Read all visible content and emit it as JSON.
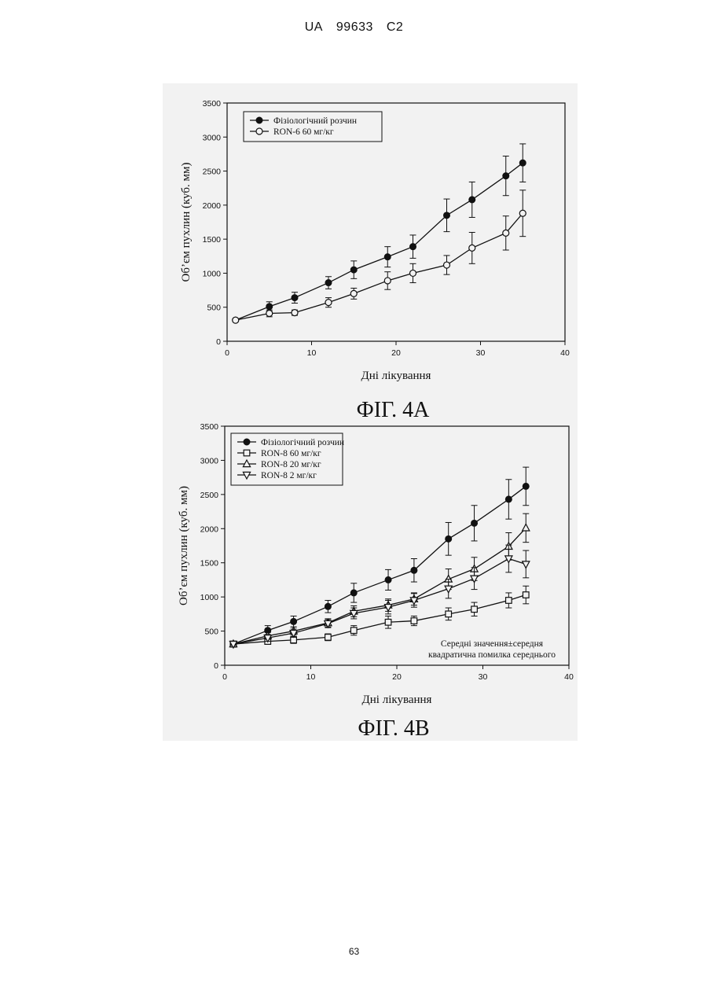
{
  "header": {
    "country": "UA",
    "number": "99633",
    "kind": "C2"
  },
  "page_number": "63",
  "chart_data": [
    {
      "type": "line",
      "figure_label": "ФІГ. 4A",
      "xlabel": "Дні лікування",
      "ylabel": "Об’єм пухлин (куб. мм)",
      "xlim": [
        0,
        40
      ],
      "ylim": [
        0,
        3500
      ],
      "xticks": [
        0,
        10,
        20,
        30,
        40
      ],
      "yticks": [
        0,
        500,
        1000,
        1500,
        2000,
        2500,
        3000,
        3500
      ],
      "grid": false,
      "legend_position": "top-left",
      "x": [
        1,
        5,
        8,
        12,
        15,
        19,
        22,
        26,
        29,
        33,
        35
      ],
      "series": [
        {
          "name": "Фізіологічний розчин",
          "marker": "filled-circle",
          "values": [
            310,
            510,
            640,
            860,
            1050,
            1240,
            1390,
            1850,
            2080,
            2430,
            2620
          ],
          "errors": [
            20,
            70,
            80,
            90,
            130,
            150,
            170,
            240,
            260,
            290,
            280
          ]
        },
        {
          "name": "RON-6 60 мг/кг",
          "marker": "open-circle",
          "values": [
            310,
            410,
            420,
            570,
            700,
            890,
            1000,
            1120,
            1370,
            1590,
            1880
          ],
          "errors": [
            20,
            50,
            40,
            70,
            80,
            130,
            140,
            140,
            230,
            250,
            340
          ]
        }
      ]
    },
    {
      "type": "line",
      "figure_label": "ФІГ. 4B",
      "xlabel": "Дні лікування",
      "ylabel": "Об’єм пухлин (куб. мм)",
      "xlim": [
        0,
        40
      ],
      "ylim": [
        0,
        3500
      ],
      "xticks": [
        0,
        10,
        20,
        30,
        40
      ],
      "yticks": [
        0,
        500,
        1000,
        1500,
        2000,
        2500,
        3000,
        3500
      ],
      "grid": false,
      "legend_position": "top-left",
      "annotation": [
        "Середні значення±середня",
        "квадратична помилка середнього"
      ],
      "x": [
        1,
        5,
        8,
        12,
        15,
        19,
        22,
        26,
        29,
        33,
        35
      ],
      "series": [
        {
          "name": "Фізіологічний розчин",
          "marker": "filled-circle",
          "values": [
            310,
            510,
            640,
            860,
            1060,
            1250,
            1390,
            1850,
            2080,
            2430,
            2620
          ],
          "errors": [
            20,
            70,
            80,
            90,
            140,
            150,
            170,
            240,
            260,
            290,
            280
          ]
        },
        {
          "name": "RON-8 60 мг/кг",
          "marker": "open-square",
          "values": [
            310,
            350,
            370,
            410,
            510,
            630,
            650,
            750,
            820,
            950,
            1030
          ],
          "errors": [
            20,
            40,
            50,
            50,
            70,
            90,
            70,
            90,
            100,
            110,
            130
          ]
        },
        {
          "name": "RON-8 20 мг/кг",
          "marker": "open-triangle-up",
          "values": [
            310,
            430,
            500,
            620,
            790,
            880,
            970,
            1260,
            1410,
            1740,
            2010
          ],
          "errors": [
            20,
            50,
            60,
            60,
            80,
            90,
            90,
            150,
            170,
            200,
            210
          ]
        },
        {
          "name": "RON-8 2 мг/кг",
          "marker": "open-triangle-down",
          "values": [
            310,
            400,
            470,
            610,
            760,
            850,
            950,
            1120,
            1270,
            1560,
            1480
          ],
          "errors": [
            20,
            50,
            60,
            60,
            80,
            100,
            100,
            140,
            160,
            200,
            200
          ]
        }
      ]
    }
  ]
}
